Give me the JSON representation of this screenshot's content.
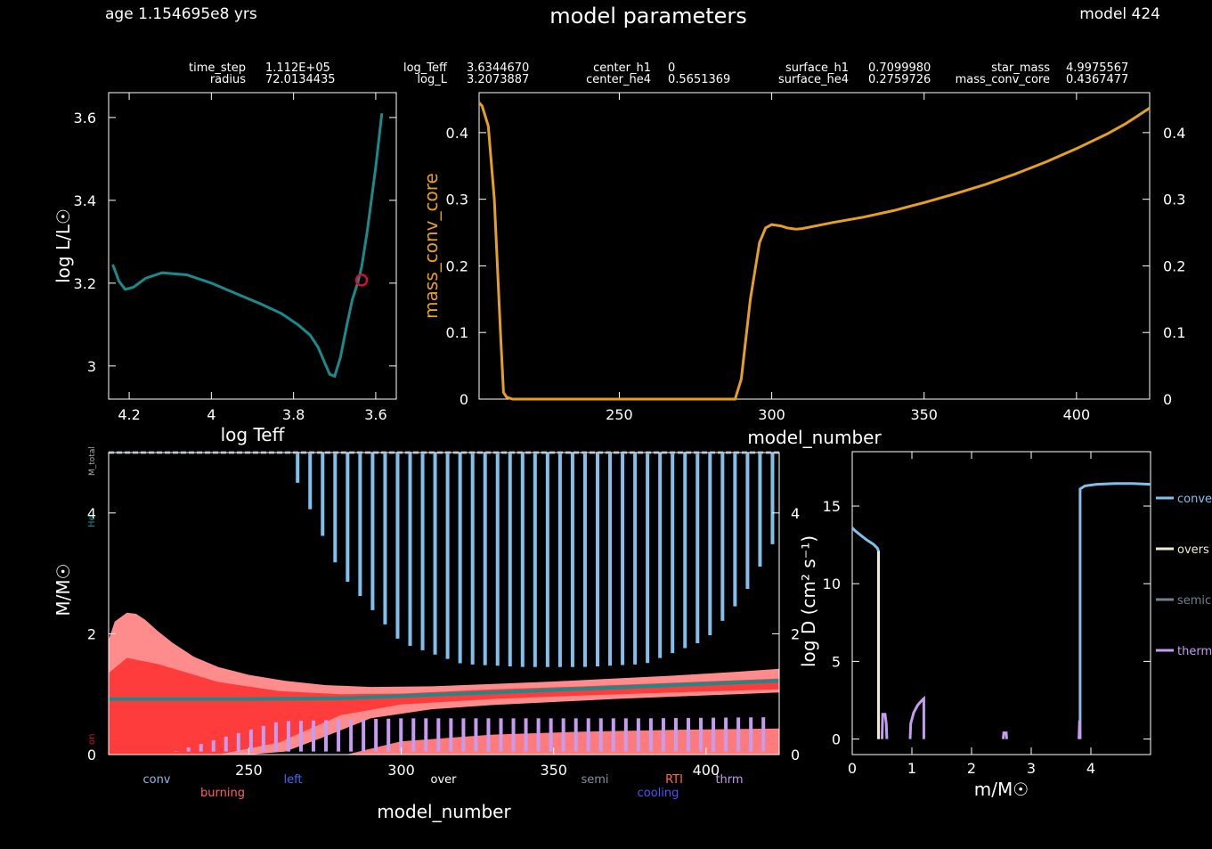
{
  "header": {
    "age": "age 1.154695e8 yrs",
    "title": "model parameters",
    "model": "model 424"
  },
  "info": {
    "row1": [
      {
        "label": "time_step",
        "value": "1.112E+05"
      },
      {
        "label": "log_Teff",
        "value": "3.6344670"
      },
      {
        "label": "center_h1",
        "value": "0"
      },
      {
        "label": "surface_h1",
        "value": "0.7099980"
      },
      {
        "label": "star_mass",
        "value": "4.9975567"
      }
    ],
    "row2": [
      {
        "label": "radius",
        "value": "72.0134435"
      },
      {
        "label": "log_L",
        "value": "3.2073887"
      },
      {
        "label": "center_he4",
        "value": "0.5651369"
      },
      {
        "label": "surface_he4",
        "value": "0.2759726"
      },
      {
        "label": "mass_conv_core",
        "value": "0.4367477"
      }
    ]
  },
  "chart_data": [
    {
      "type": "line",
      "id": "hr",
      "xlabel": "log Teff",
      "ylabel": "log L/L☉",
      "xlim": [
        4.25,
        3.55
      ],
      "ylim": [
        2.92,
        3.66
      ],
      "xticks": [
        4.2,
        4,
        3.8,
        3.6
      ],
      "xtick_labels": [
        "4.2",
        "4",
        "3.8",
        "3.6"
      ],
      "yticks": [
        3,
        3.2,
        3.4,
        3.6
      ],
      "ytick_labels": [
        "3",
        "3.2",
        "3.4",
        "3.6"
      ],
      "color": "#1b8a8a",
      "x": [
        4.24,
        4.225,
        4.21,
        4.19,
        4.16,
        4.12,
        4.06,
        4.0,
        3.94,
        3.88,
        3.83,
        3.79,
        3.76,
        3.74,
        3.725,
        3.712,
        3.7,
        3.686,
        3.67,
        3.657,
        3.644,
        3.634,
        3.62,
        3.6,
        3.585
      ],
      "y": [
        3.245,
        3.205,
        3.185,
        3.19,
        3.212,
        3.225,
        3.22,
        3.2,
        3.175,
        3.15,
        3.127,
        3.1,
        3.075,
        3.045,
        3.01,
        2.98,
        2.975,
        3.02,
        3.1,
        3.16,
        3.2,
        3.24,
        3.33,
        3.48,
        3.61
      ],
      "marker": {
        "x": 3.6345,
        "y": 3.2074,
        "color": "#d0103a"
      }
    },
    {
      "type": "line",
      "id": "conv_core",
      "xlabel": "model_number",
      "ylabel": "mass_conv_core",
      "xlim": [
        204,
        424
      ],
      "ylim": [
        0,
        0.46
      ],
      "xticks": [
        250,
        300,
        350,
        400
      ],
      "xtick_labels": [
        "250",
        "300",
        "350",
        "400"
      ],
      "yticks": [
        0,
        0.1,
        0.2,
        0.3,
        0.4
      ],
      "ytick_labels": [
        "0",
        "0.1",
        "0.2",
        "0.3",
        "0.4"
      ],
      "color": "#e6a020",
      "x": [
        204,
        205,
        207,
        209,
        211,
        212,
        213,
        215,
        220,
        260,
        288,
        290,
        293,
        296,
        298,
        300,
        303,
        305,
        308,
        310,
        320,
        330,
        340,
        350,
        360,
        370,
        380,
        390,
        400,
        410,
        416,
        420,
        424
      ],
      "y": [
        0.445,
        0.44,
        0.41,
        0.3,
        0.1,
        0.01,
        0.003,
        0.0,
        0.0,
        0.0,
        0.0,
        0.03,
        0.15,
        0.235,
        0.257,
        0.262,
        0.26,
        0.257,
        0.255,
        0.256,
        0.265,
        0.273,
        0.283,
        0.295,
        0.308,
        0.322,
        0.338,
        0.356,
        0.376,
        0.398,
        0.413,
        0.425,
        0.437
      ]
    },
    {
      "type": "area",
      "id": "kippenhahn",
      "xlabel": "model_number",
      "ylabel": "M/M☉",
      "xlim": [
        204,
        424
      ],
      "ylim": [
        0,
        5.0
      ],
      "xticks": [
        250,
        300,
        350,
        400
      ],
      "xtick_labels": [
        "250",
        "300",
        "350",
        "400"
      ],
      "yticks": [
        0,
        2,
        4
      ],
      "ytick_labels": [
        "0",
        "2",
        "4"
      ],
      "right_yticks": [
        0,
        2,
        4
      ],
      "right_ytick_labels": [
        "0",
        "2",
        "4"
      ],
      "edge_labels": {
        "mtotal": "M_total",
        "he": "He",
        "h": "on"
      },
      "total_mass": 5.0,
      "he_core": {
        "x": [
          204,
          250,
          280,
          300,
          330,
          360,
          390,
          424
        ],
        "y": [
          0.92,
          0.92,
          0.93,
          0.97,
          1.03,
          1.09,
          1.15,
          1.22
        ],
        "color": "#1b8a8a"
      },
      "burning_outer": {
        "x": [
          204,
          206,
          210,
          213,
          216,
          220,
          225,
          232,
          240,
          250,
          262,
          275,
          290,
          310,
          330,
          350,
          370,
          390,
          410,
          424
        ],
        "top": [
          1.9,
          2.2,
          2.35,
          2.33,
          2.23,
          2.05,
          1.85,
          1.62,
          1.45,
          1.32,
          1.22,
          1.15,
          1.12,
          1.13,
          1.17,
          1.21,
          1.26,
          1.31,
          1.37,
          1.42
        ],
        "bottom": [
          0.0,
          0.0,
          0.0,
          0.0,
          0.0,
          0.0,
          0.0,
          0.0,
          0.0,
          0.0,
          0.05,
          0.3,
          0.6,
          0.75,
          0.82,
          0.87,
          0.92,
          0.96,
          1.0,
          1.03
        ],
        "color": "#ff8c8c"
      },
      "burning_inner": {
        "x": [
          204,
          210,
          220,
          240,
          260,
          280,
          300,
          330,
          360,
          390,
          424
        ],
        "top": [
          1.35,
          1.6,
          1.5,
          1.2,
          1.05,
          1.0,
          1.01,
          1.08,
          1.13,
          1.19,
          1.26
        ],
        "bottom": [
          0.0,
          0.0,
          0.0,
          0.0,
          0.2,
          0.65,
          0.83,
          0.92,
          0.98,
          1.03,
          1.08
        ],
        "color": "#ff3c3c"
      },
      "shell_burning": {
        "x": [
          282,
          300,
          330,
          360,
          390,
          424
        ],
        "top": [
          0.0,
          0.22,
          0.33,
          0.38,
          0.41,
          0.43
        ],
        "color": "#ff7a7a"
      },
      "envelope_conv": {
        "x_start": 266,
        "x_end": 422,
        "spacing": 4.1,
        "top": 5.0,
        "bottom_x": [
          266,
          280,
          300,
          320,
          340,
          360,
          380,
          400,
          412,
          422
        ],
        "bottom_y": [
          4.5,
          3.0,
          1.85,
          1.5,
          1.45,
          1.45,
          1.5,
          1.9,
          2.6,
          3.5
        ],
        "color": "#7fc0ec"
      },
      "thermohaline": {
        "x_start": 222,
        "x_end": 422,
        "spacing": 4.1,
        "top_x": [
          222,
          260,
          300,
          340,
          380,
          424
        ],
        "top_y": [
          0.0,
          0.55,
          0.6,
          0.6,
          0.6,
          0.62
        ],
        "bottom": 0.05,
        "color": "#c49cf0"
      },
      "legend_labels": [
        {
          "text": "conv",
          "color": "#8ab8f0"
        },
        {
          "text": "burning",
          "color": "#ff6060"
        },
        {
          "text": "left",
          "color": "#3a6cff"
        },
        {
          "text": "over",
          "color": "#ffffff"
        },
        {
          "text": "semi",
          "color": "#8090a0"
        },
        {
          "text": "cooling",
          "color": "#5050ff"
        },
        {
          "text": "RTI",
          "color": "#ff6a4a"
        },
        {
          "text": "thrm",
          "color": "#c49cf0"
        }
      ]
    },
    {
      "type": "line",
      "id": "mixing",
      "xlabel": "m/M☉",
      "ylabel": "log D (cm² s⁻¹)",
      "xlim": [
        0,
        5.0
      ],
      "ylim": [
        -1,
        18.5
      ],
      "xticks": [
        0,
        1,
        2,
        3,
        4
      ],
      "xtick_labels": [
        "0",
        "1",
        "2",
        "3",
        "4"
      ],
      "yticks": [
        0,
        5,
        10,
        15
      ],
      "ytick_labels": [
        "0",
        "5",
        "10",
        "15"
      ],
      "series": [
        {
          "name": "conve",
          "color": "#7fc0ec",
          "segments": [
            {
              "x": [
                0,
                0.05,
                0.15,
                0.25,
                0.35,
                0.42,
                0.44,
                0.44
              ],
              "y": [
                13.6,
                13.4,
                13.1,
                12.8,
                12.55,
                12.3,
                12.1,
                0
              ]
            },
            {
              "x": [
                3.82,
                3.82,
                3.9,
                4.1,
                4.4,
                4.7,
                5.0
              ],
              "y": [
                0,
                16.1,
                16.3,
                16.4,
                16.45,
                16.45,
                16.4
              ]
            }
          ]
        },
        {
          "name": "overs",
          "color": "#f0ead2",
          "segments": [
            {
              "x": [
                0.44,
                0.44
              ],
              "y": [
                0,
                12.1
              ]
            }
          ]
        },
        {
          "name": "semic",
          "color": "#708090",
          "segments": []
        },
        {
          "name": "therm",
          "color": "#c49cf0",
          "segments": [
            {
              "x": [
                0.5,
                0.51,
                0.55,
                0.57,
                0.58
              ],
              "y": [
                0,
                1.6,
                1.6,
                1.0,
                0
              ]
            },
            {
              "x": [
                0.97,
                0.98,
                1.03,
                1.1,
                1.17,
                1.2,
                1.2
              ],
              "y": [
                0,
                1.0,
                1.7,
                2.2,
                2.5,
                2.6,
                0
              ]
            },
            {
              "x": [
                2.53,
                2.54,
                2.58,
                2.59
              ],
              "y": [
                0,
                0.4,
                0.4,
                0
              ]
            },
            {
              "x": [
                3.8,
                3.81,
                3.82
              ],
              "y": [
                0,
                1.2,
                0
              ]
            }
          ]
        }
      ]
    }
  ]
}
